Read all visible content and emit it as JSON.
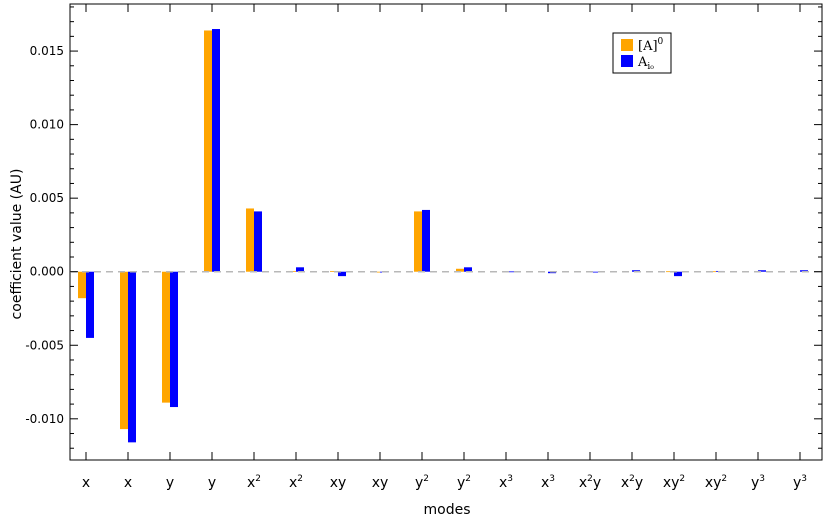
{
  "chart_data": {
    "type": "bar",
    "title": "",
    "xlabel": "modes",
    "ylabel": "coefficient value  (AU)",
    "ylim": [
      -0.0128,
      0.0182
    ],
    "yticks": [
      "-0.010",
      "-0.005",
      "0.000",
      "0.005",
      "0.010",
      "0.015"
    ],
    "ytick_values": [
      -0.01,
      -0.005,
      0.0,
      0.005,
      0.01,
      0.015
    ],
    "zero_line": "dashed",
    "grid": false,
    "legend_position": "top-right",
    "categories": [
      {
        "base": "x",
        "sup": ""
      },
      {
        "base": "x",
        "sup": ""
      },
      {
        "base": "y",
        "sup": ""
      },
      {
        "base": "y",
        "sup": ""
      },
      {
        "base": "x",
        "sup": "2"
      },
      {
        "base": "x",
        "sup": "2"
      },
      {
        "base": "xy",
        "sup": ""
      },
      {
        "base": "xy",
        "sup": ""
      },
      {
        "base": "y",
        "sup": "2"
      },
      {
        "base": "y",
        "sup": "2"
      },
      {
        "base": "x",
        "sup": "3"
      },
      {
        "base": "x",
        "sup": "3"
      },
      {
        "base": "x",
        "sup": "2",
        "tail": "y"
      },
      {
        "base": "x",
        "sup": "2",
        "tail": "y"
      },
      {
        "base": "xy",
        "sup": "2"
      },
      {
        "base": "xy",
        "sup": "2"
      },
      {
        "base": "y",
        "sup": "3"
      },
      {
        "base": "y",
        "sup": "3"
      }
    ],
    "series": [
      {
        "legend": {
          "base": "[A]",
          "sup": "0",
          "sub": ""
        },
        "color": "#FFA500",
        "values": [
          -0.0018,
          -0.0107,
          -0.0089,
          0.0164,
          0.0043,
          5e-05,
          5e-05,
          -5e-05,
          0.0041,
          0.0002,
          0.0,
          0.0,
          0.0,
          0.0,
          3e-05,
          3e-05,
          0.0,
          0.0
        ]
      },
      {
        "legend": {
          "base": "A",
          "sup": "",
          "sub": "i₀"
        },
        "color": "#0000FF",
        "values": [
          -0.0045,
          -0.0116,
          -0.0092,
          0.0165,
          0.0041,
          0.0003,
          -0.0003,
          -5e-05,
          0.0042,
          0.0003,
          2e-05,
          -0.0001,
          -5e-05,
          0.0001,
          -0.0003,
          5e-05,
          0.0001,
          0.0001
        ]
      }
    ]
  }
}
